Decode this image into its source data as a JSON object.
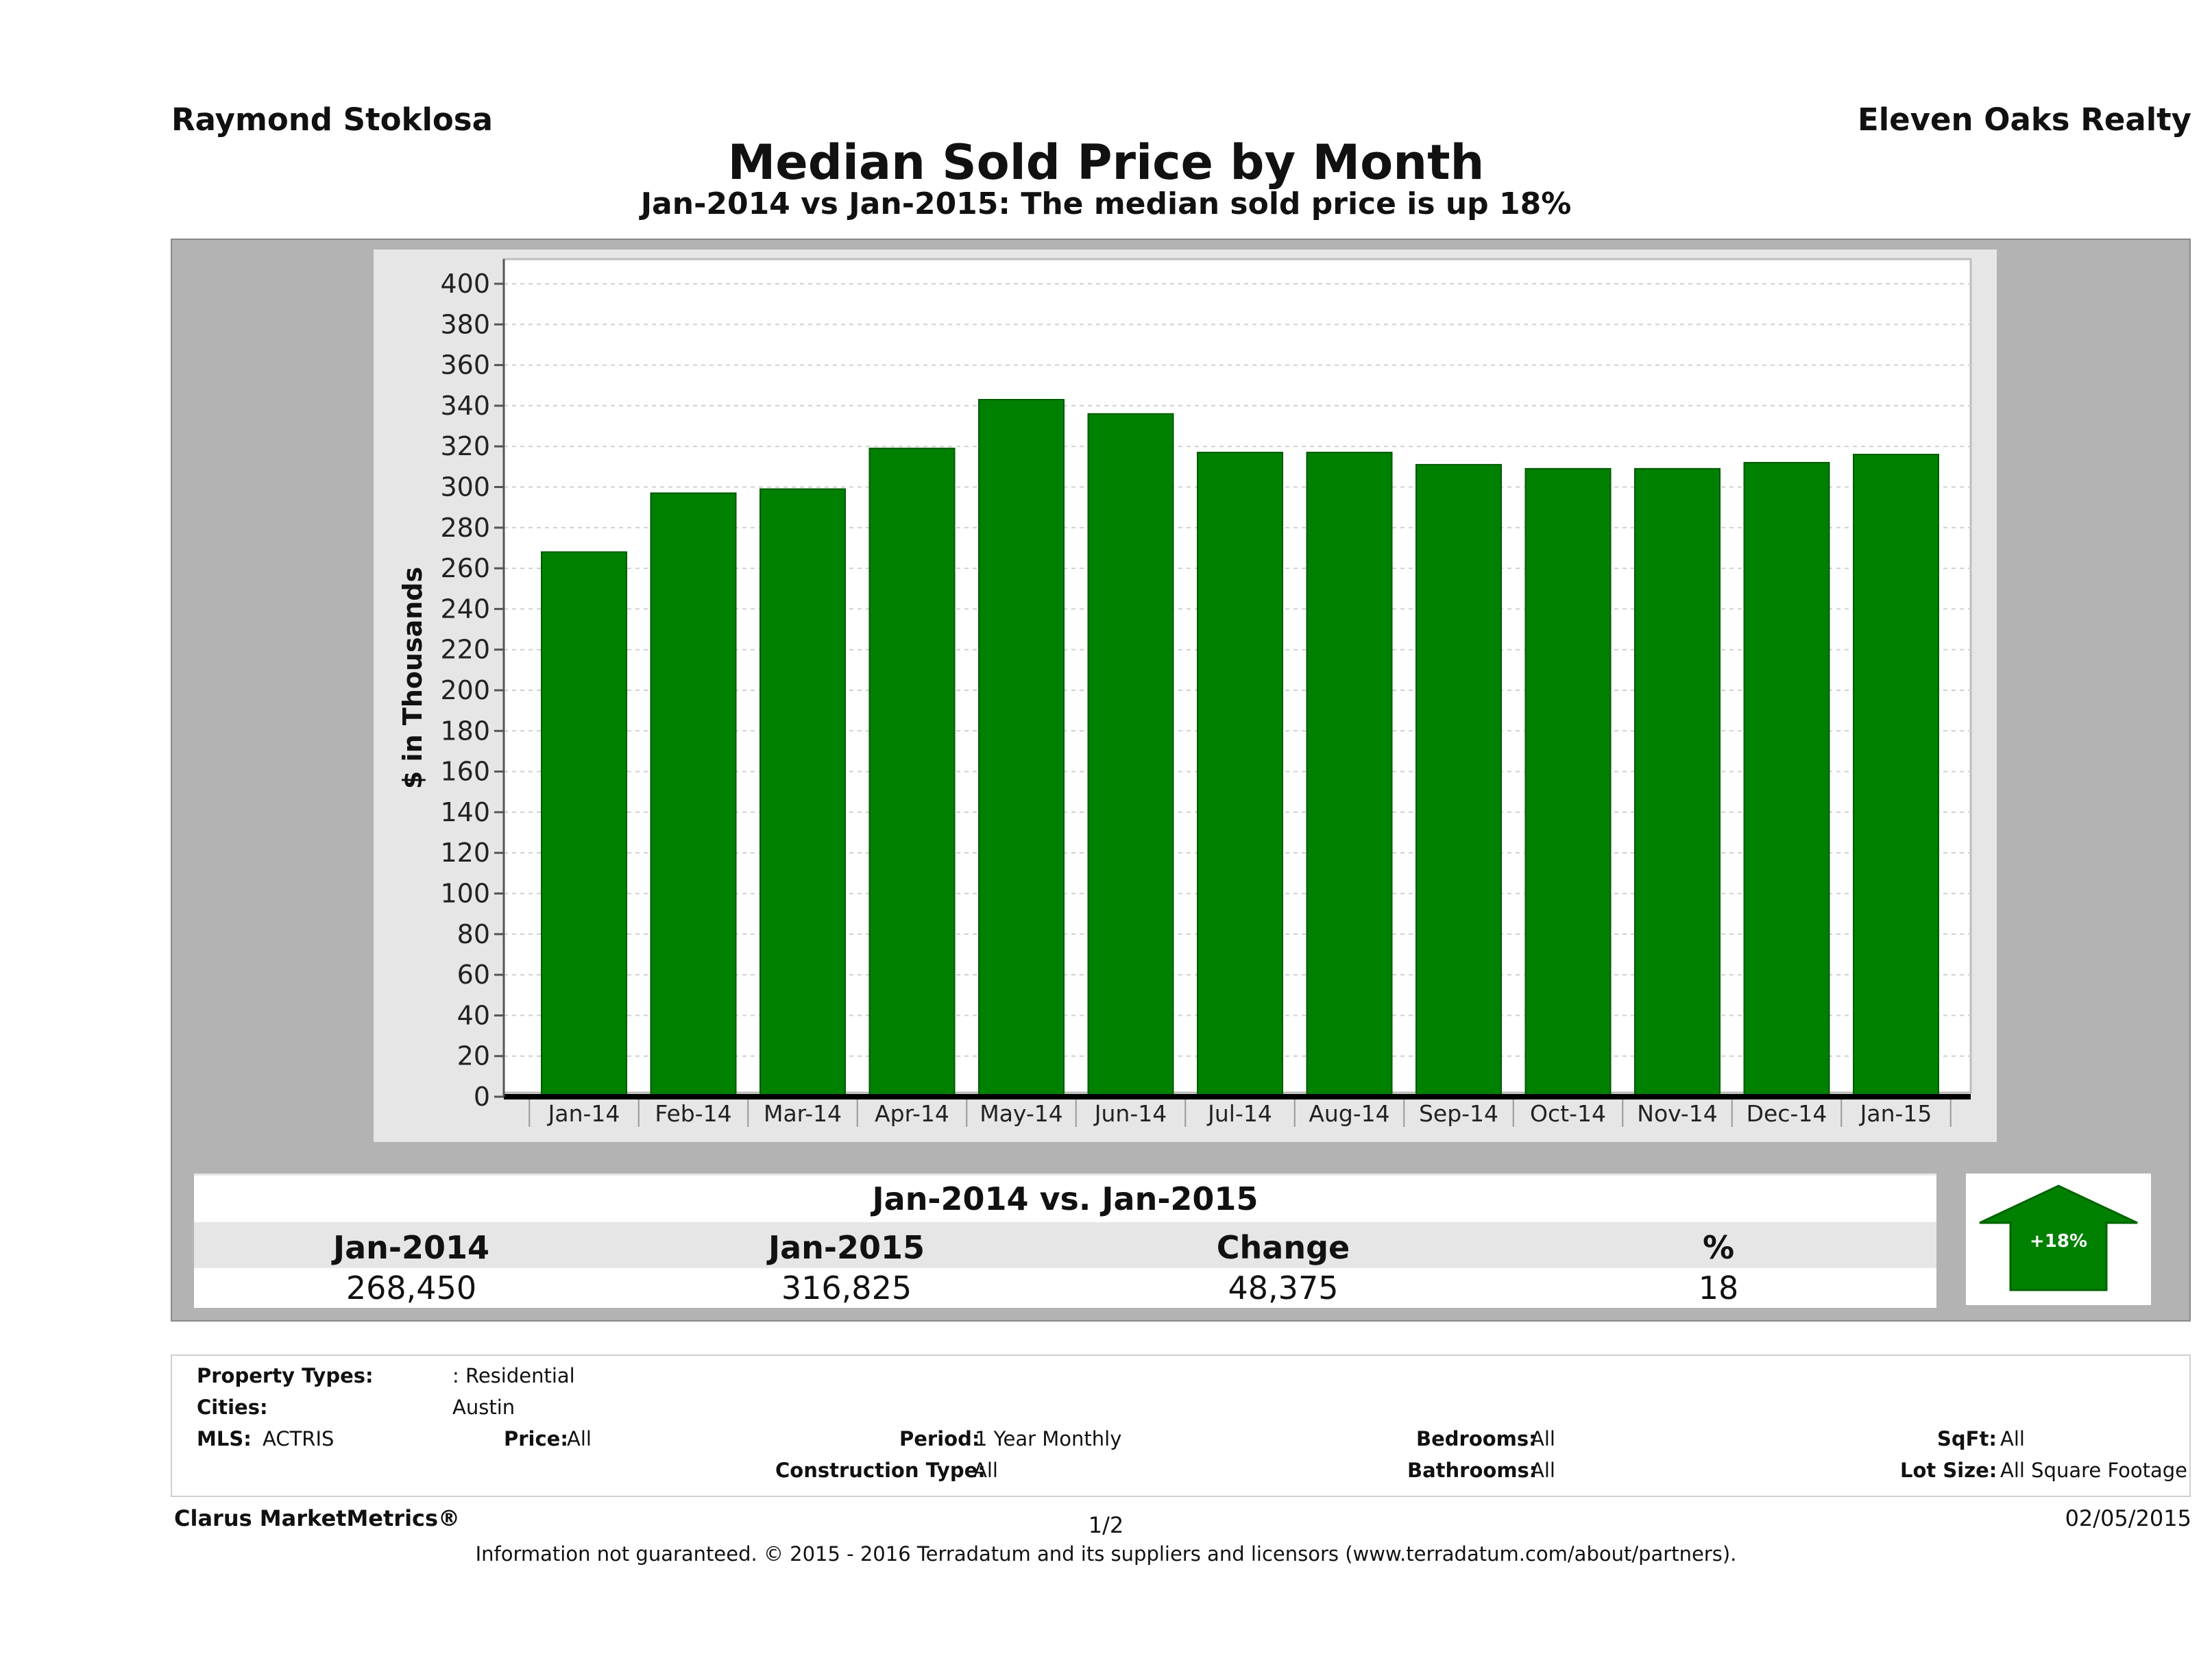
{
  "header": {
    "agent": "Raymond Stoklosa",
    "brokerage": "Eleven Oaks Realty"
  },
  "chart_data": {
    "type": "bar",
    "title": "Median Sold Price by Month",
    "subtitle": "Jan-2014 vs Jan-2015: The median sold price is up 18%",
    "ylabel": "$ in Thousands",
    "xlabel": "",
    "ylim": [
      0,
      400
    ],
    "yticks": [
      0,
      20,
      40,
      60,
      80,
      100,
      120,
      140,
      160,
      180,
      200,
      220,
      240,
      260,
      280,
      300,
      320,
      340,
      360,
      380,
      400
    ],
    "categories": [
      "Jan-14",
      "Feb-14",
      "Mar-14",
      "Apr-14",
      "May-14",
      "Jun-14",
      "Jul-14",
      "Aug-14",
      "Sep-14",
      "Oct-14",
      "Nov-14",
      "Dec-14",
      "Jan-15"
    ],
    "values": [
      268,
      297,
      299,
      319,
      343,
      336,
      317,
      317,
      311,
      309,
      309,
      312,
      316
    ],
    "grid": true,
    "bar_color": "#008000"
  },
  "summary": {
    "title": "Jan-2014 vs. Jan-2015",
    "headers": [
      "Jan-2014",
      "Jan-2015",
      "Change",
      "%"
    ],
    "values": [
      "268,450",
      "316,825",
      "48,375",
      "18"
    ],
    "badge": "+18%",
    "badge_icon": "up-arrow-icon",
    "badge_color": "#008000"
  },
  "filters": {
    "property_types_label": "Property Types:",
    "property_types_value": ": Residential",
    "cities_label": "Cities:",
    "cities_value": "Austin",
    "mls_label": "MLS:",
    "mls_value": "ACTRIS",
    "price_label": "Price:",
    "price_value": "All",
    "period_label": "Period:",
    "period_value": "1 Year Monthly",
    "bedrooms_label": "Bedrooms:",
    "bedrooms_value": "All",
    "sqft_label": "SqFt:",
    "sqft_value": "All",
    "construction_label": "Construction Type:",
    "construction_value": "All",
    "bathrooms_label": "Bathrooms:",
    "bathrooms_value": "All",
    "lot_label": "Lot Size:",
    "lot_value": "All Square Footage"
  },
  "footer": {
    "brand": "Clarus MarketMetrics®",
    "page": "1/2",
    "date": "02/05/2015",
    "note": "Information not guaranteed. © 2015 - 2016 Terradatum and its suppliers and licensors (www.terradatum.com/about/partners)."
  }
}
